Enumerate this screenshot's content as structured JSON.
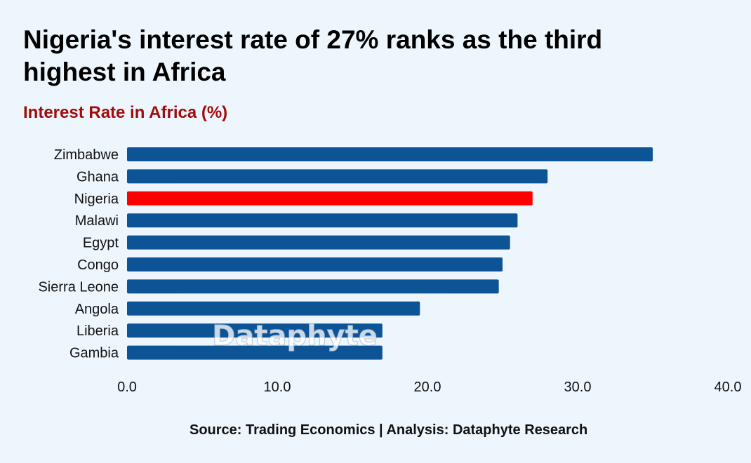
{
  "colors": {
    "background": "#eef6fd",
    "bar": "#0c5496",
    "highlight": "#ff0000",
    "subtitle": "#a10b0b"
  },
  "chart_data": {
    "type": "bar",
    "orientation": "horizontal",
    "title": "Nigeria's interest rate of 27% ranks as the third highest in Africa",
    "subtitle": "Interest Rate in Africa (%)",
    "categories": [
      "Zimbabwe",
      "Ghana",
      "Nigeria",
      "Malawi",
      "Egypt",
      "Congo",
      "Sierra Leone",
      "Angola",
      "Liberia",
      "Gambia"
    ],
    "values": [
      35.0,
      28.0,
      27.0,
      26.0,
      25.5,
      25.0,
      24.75,
      19.5,
      17.0,
      17.0
    ],
    "highlight": "Nigeria",
    "xlim": [
      0,
      40
    ],
    "xticks": [
      "0.0",
      "10.0",
      "20.0",
      "30.0",
      "40.0"
    ],
    "xlabel": "",
    "ylabel": "",
    "grid": false,
    "legend": "none"
  },
  "watermark": "Dataphyte",
  "source": "Source: Trading Economics | Analysis: Dataphyte Research"
}
